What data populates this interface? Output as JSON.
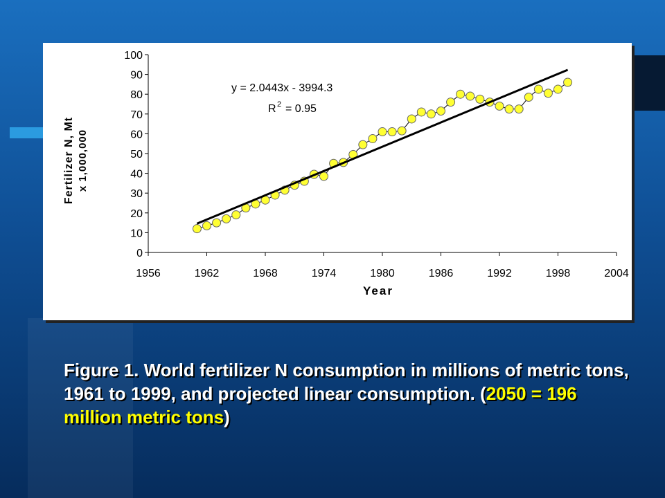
{
  "chart_data": {
    "type": "scatter",
    "xlabel": "Year",
    "ylabel": [
      "Fertilizer N, Mt",
      "x 1,000,000"
    ],
    "equation": "y = 2.0443x - 3994.3",
    "r2": {
      "symbol": "R",
      "sup": "2",
      "value": "= 0.95"
    },
    "xlim": [
      1956,
      2004
    ],
    "xticks": [
      1956,
      1962,
      1968,
      1974,
      1980,
      1986,
      1992,
      1998,
      2004
    ],
    "ylim": [
      0,
      100
    ],
    "yticks": [
      0,
      10,
      20,
      30,
      40,
      50,
      60,
      70,
      80,
      90,
      100
    ],
    "series": [
      {
        "color": "#ffff33",
        "line_color": "#000000",
        "x": [
          1961,
          1962,
          1963,
          1964,
          1965,
          1966,
          1967,
          1968,
          1969,
          1970,
          1971,
          1972,
          1973,
          1974,
          1975,
          1976,
          1977,
          1978,
          1979,
          1980,
          1981,
          1982,
          1983,
          1984,
          1985,
          1986,
          1987,
          1988,
          1989,
          1990,
          1991,
          1992,
          1993,
          1994,
          1995,
          1996,
          1997,
          1998,
          1999
        ],
        "values": [
          12,
          13.5,
          15,
          17,
          19,
          22.5,
          24.5,
          26.5,
          29,
          31.5,
          34,
          36,
          39.5,
          38.5,
          45,
          45.5,
          49.5,
          54.5,
          57.5,
          61,
          61,
          61.5,
          67.5,
          71,
          70,
          71.5,
          76,
          80,
          79,
          77.5,
          76,
          74,
          72.5,
          72.5,
          78.5,
          82.5,
          80.5,
          82.5,
          86
        ]
      },
      {
        "type": "line",
        "color": "#000000",
        "x": [
          1961,
          1999
        ],
        "values": [
          14.6,
          92.3
        ]
      }
    ]
  },
  "caption": {
    "parts": [
      "Figure 1.  World fertilizer N consumption in millions of metric tons, 1961 to 1999, and projected linear consumption. (",
      "2050 = 196 million metric tons",
      ")"
    ],
    "colors": [
      "#ffffff",
      "#ffff00",
      "#ffffff"
    ]
  }
}
